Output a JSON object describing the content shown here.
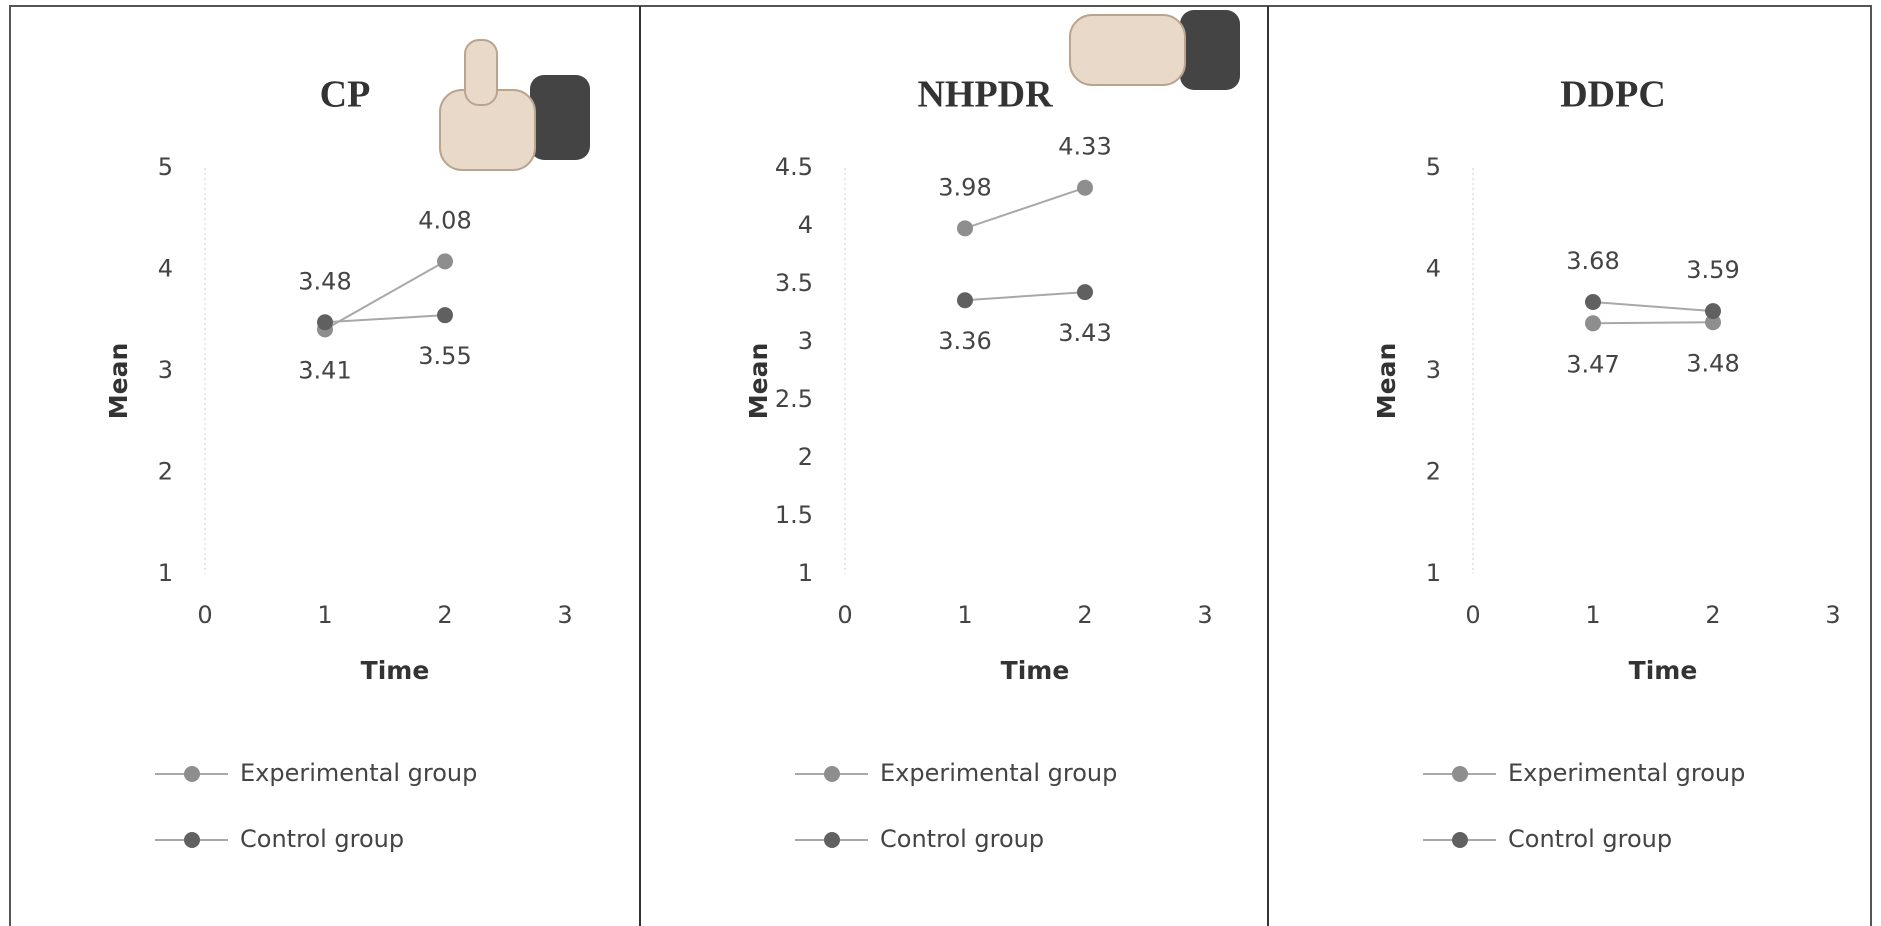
{
  "chart_data": [
    {
      "type": "line",
      "title": "CP",
      "x_label": "Time",
      "y_label": "Mean",
      "x": [
        1,
        2
      ],
      "xlim": [
        0,
        3
      ],
      "xticks": [
        0,
        1,
        2,
        3
      ],
      "ylim": [
        1,
        5
      ],
      "yticks": [
        1,
        2,
        3,
        4,
        5
      ],
      "series": [
        {
          "name": "Experimental group",
          "color": "#8e8e8e",
          "values": [
            3.41,
            4.08
          ]
        },
        {
          "name": "Control group",
          "color": "#606060",
          "values": [
            3.48,
            3.55
          ]
        }
      ]
    },
    {
      "type": "line",
      "title": "NHPDR",
      "x_label": "Time",
      "y_label": "Mean",
      "x": [
        1,
        2
      ],
      "xlim": [
        0,
        3
      ],
      "xticks": [
        0,
        1,
        2,
        3
      ],
      "ylim": [
        1,
        4.5
      ],
      "yticks": [
        1,
        1.5,
        2,
        2.5,
        3,
        3.5,
        4,
        4.5
      ],
      "series": [
        {
          "name": "Experimental group",
          "color": "#8e8e8e",
          "values": [
            3.98,
            4.33
          ]
        },
        {
          "name": "Control group",
          "color": "#606060",
          "values": [
            3.36,
            3.43
          ]
        }
      ]
    },
    {
      "type": "line",
      "title": "DDPC",
      "x_label": "Time",
      "y_label": "Mean",
      "x": [
        1,
        2
      ],
      "xlim": [
        0,
        3
      ],
      "xticks": [
        0,
        1,
        2,
        3
      ],
      "ylim": [
        1,
        5
      ],
      "yticks": [
        1,
        2,
        3,
        4,
        5
      ],
      "series": [
        {
          "name": "Experimental group",
          "color": "#8e8e8e",
          "values": [
            3.47,
            3.48
          ]
        },
        {
          "name": "Control group",
          "color": "#606060",
          "values": [
            3.68,
            3.59
          ]
        }
      ]
    }
  ]
}
